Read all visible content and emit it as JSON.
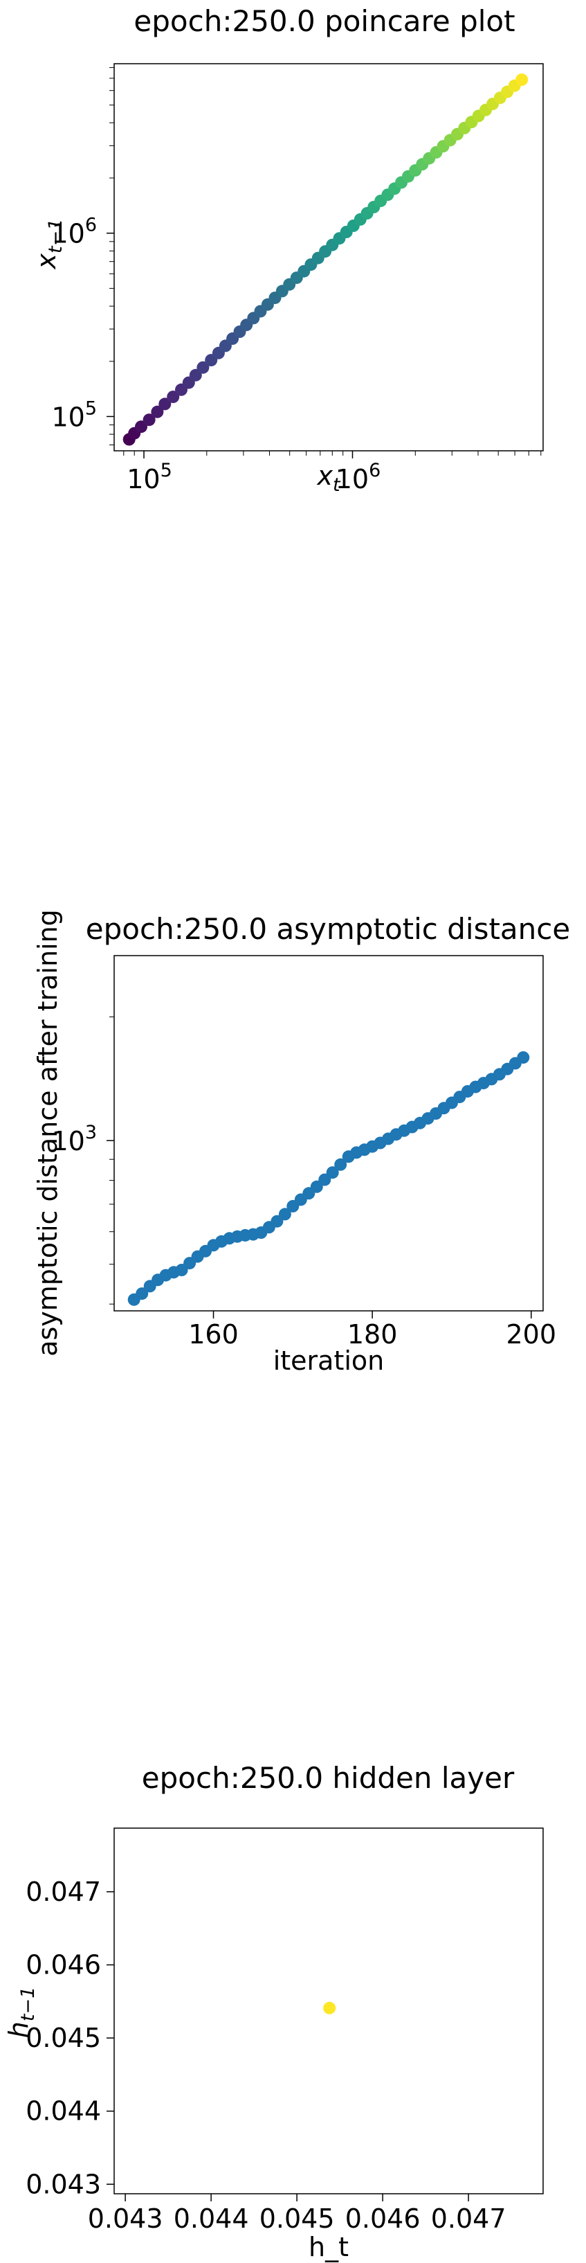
{
  "chart_data": [
    {
      "type": "scatter",
      "title": "epoch:250.0 poincare plot",
      "xlabel": "x",
      "xlabel_sub": "t",
      "ylabel": "x",
      "ylabel_sub": "t−1",
      "xscale": "log",
      "yscale": "log",
      "xlim": [
        72000,
        8200000
      ],
      "ylim": [
        65000,
        8400000
      ],
      "grid": false,
      "colormap": "viridis",
      "xticks": [
        {
          "mantissa": "10",
          "exp": "5"
        },
        {
          "mantissa": "10",
          "exp": "6"
        }
      ],
      "yticks": [
        {
          "mantissa": "10",
          "exp": "5"
        },
        {
          "mantissa": "10",
          "exp": "6"
        }
      ],
      "x": [
        85000,
        90000,
        97000,
        106000,
        116000,
        126000,
        138000,
        151000,
        164000,
        177000,
        192000,
        210000,
        228000,
        246000,
        266000,
        288000,
        310000,
        335000,
        362000,
        392000,
        425000,
        460000,
        498000,
        540000,
        585000,
        632000,
        684000,
        740000,
        800000,
        865000,
        935000,
        1010000,
        1090000,
        1175000,
        1265000,
        1365000,
        1475000,
        1590000,
        1715000,
        1850000,
        2000000,
        2160000,
        2330000,
        2520000,
        2720000,
        2940000,
        3180000,
        3440000,
        3720000,
        4020000,
        4350000,
        4700000,
        5100000,
        5520000,
        5980000,
        6480000
      ],
      "y": [
        75000,
        81000,
        88000,
        96000,
        106000,
        117000,
        128000,
        140000,
        153000,
        168000,
        185000,
        203000,
        222000,
        243000,
        266000,
        290000,
        316000,
        344000,
        375000,
        408000,
        444000,
        483000,
        525000,
        571000,
        620000,
        674000,
        732000,
        795000,
        863000,
        937000,
        1015000,
        1098000,
        1188000,
        1284000,
        1388000,
        1500000,
        1620000,
        1750000,
        1890000,
        2040000,
        2200000,
        2375000,
        2560000,
        2760000,
        2980000,
        3215000,
        3470000,
        3745000,
        4040000,
        4360000,
        4700000,
        5070000,
        5470000,
        5900000,
        6370000,
        6870000
      ]
    },
    {
      "type": "scatter",
      "title": "epoch:250.0 asymptotic distance",
      "xlabel": "iteration",
      "ylabel": "asymptotic distance after training",
      "xscale": "linear",
      "yscale": "log",
      "xlim": [
        147.5,
        201.5
      ],
      "ylim": [
        385,
        2820
      ],
      "grid": false,
      "color": "#1f77b4",
      "xticks": [
        160,
        180,
        200
      ],
      "yticks": [
        {
          "mantissa": "10",
          "exp": "3"
        }
      ],
      "x": [
        150,
        151,
        152,
        153,
        154,
        155,
        156,
        157,
        158,
        159,
        160,
        161,
        162,
        163,
        164,
        165,
        166,
        167,
        168,
        169,
        170,
        171,
        172,
        173,
        174,
        175,
        176,
        177,
        178,
        179,
        180,
        181,
        182,
        183,
        184,
        185,
        186,
        187,
        188,
        189,
        190,
        191,
        192,
        193,
        194,
        195,
        196,
        197,
        198,
        199
      ],
      "y": [
        410,
        424,
        442,
        458,
        470,
        478,
        484,
        503,
        522,
        538,
        556,
        568,
        578,
        584,
        588,
        591,
        597,
        615,
        636,
        662,
        692,
        718,
        744,
        772,
        803,
        836,
        874,
        914,
        935,
        950,
        967,
        987,
        1010,
        1035,
        1057,
        1079,
        1103,
        1132,
        1164,
        1199,
        1236,
        1277,
        1318,
        1351,
        1380,
        1411,
        1450,
        1493,
        1542,
        1593
      ]
    },
    {
      "type": "scatter",
      "title": "epoch:250.0 hidden layer",
      "xlabel": "h_t",
      "ylabel": "h",
      "ylabel_sub": "t−1",
      "xscale": "linear",
      "yscale": "linear",
      "xlim": [
        0.04287,
        0.04787
      ],
      "ylim": [
        0.04287,
        0.04787
      ],
      "grid": false,
      "color": "#fde725",
      "xticks": [
        "0.043",
        "0.044",
        "0.045",
        "0.046",
        "0.047"
      ],
      "yticks": [
        "0.043",
        "0.044",
        "0.045",
        "0.046",
        "0.047"
      ],
      "x": [
        0.04538
      ],
      "y": [
        0.04541
      ]
    }
  ]
}
